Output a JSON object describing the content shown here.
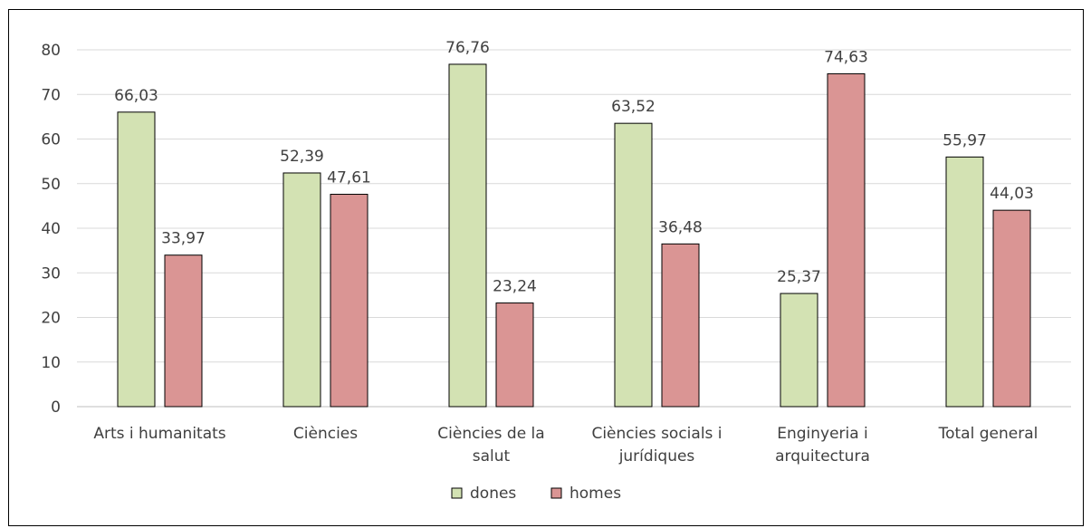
{
  "chart_data": {
    "type": "bar",
    "title": "",
    "xlabel": "",
    "ylabel": "",
    "ylim": [
      0,
      80
    ],
    "yticks": [
      0,
      10,
      20,
      30,
      40,
      50,
      60,
      70,
      80
    ],
    "grid": true,
    "legend_position": "bottom",
    "categories": [
      [
        "Arts i humanitats"
      ],
      [
        "Ciències"
      ],
      [
        "Ciències de la",
        "salut"
      ],
      [
        "Ciències socials i",
        "jurídiques"
      ],
      [
        "Enginyeria i",
        "arquitectura"
      ],
      [
        "Total general"
      ]
    ],
    "series": [
      {
        "name": "dones",
        "color": "#d3e2b3",
        "values": [
          66.03,
          52.39,
          76.76,
          63.52,
          25.37,
          55.97
        ],
        "labels": [
          "66,03",
          "52,39",
          "76,76",
          "63,52",
          "25,37",
          "55,97"
        ]
      },
      {
        "name": "homes",
        "color": "#da9594",
        "values": [
          33.97,
          47.61,
          23.24,
          36.48,
          74.63,
          44.03
        ],
        "labels": [
          "33,97",
          "47,61",
          "23,24",
          "36,48",
          "74,63",
          "44,03"
        ]
      }
    ],
    "gridline_color": "#d9d9d9",
    "text_color": "#404040"
  }
}
